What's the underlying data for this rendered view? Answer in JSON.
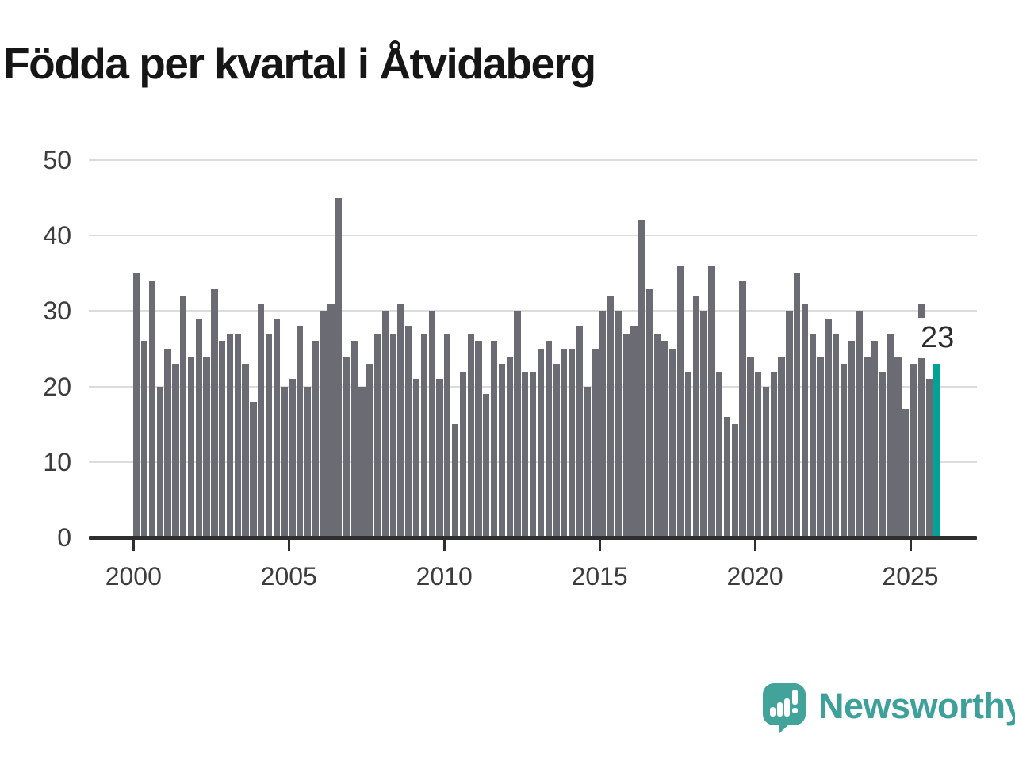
{
  "title": "Födda per kvartal i Åtvidaberg",
  "colors": {
    "bar": "#6b6b73",
    "highlight": "#00a295",
    "gridline": "#dcdcdc",
    "axis": "#2e2e2e",
    "logo_teal": "#3da09a"
  },
  "annotation": {
    "label": "23"
  },
  "logo": {
    "text": "Newsworthy"
  },
  "chart_data": {
    "type": "bar",
    "title": "Födda per kvartal i Åtvidaberg",
    "x_start": "2000 Q1",
    "x_step": "quarter",
    "values": [
      35,
      26,
      34,
      20,
      25,
      23,
      32,
      24,
      29,
      24,
      33,
      26,
      27,
      27,
      23,
      18,
      31,
      27,
      29,
      20,
      21,
      28,
      20,
      26,
      30,
      31,
      45,
      24,
      26,
      20,
      23,
      27,
      30,
      27,
      31,
      28,
      21,
      27,
      30,
      21,
      27,
      15,
      22,
      27,
      26,
      19,
      26,
      23,
      24,
      30,
      22,
      22,
      25,
      26,
      23,
      25,
      25,
      28,
      20,
      25,
      30,
      32,
      30,
      27,
      28,
      42,
      33,
      27,
      26,
      25,
      36,
      22,
      32,
      30,
      36,
      22,
      16,
      15,
      34,
      24,
      22,
      20,
      22,
      24,
      30,
      35,
      31,
      27,
      24,
      29,
      27,
      23,
      26,
      30,
      24,
      26,
      22,
      27,
      24,
      17,
      23,
      31,
      21,
      23
    ],
    "highlight_last": true,
    "last_value_label": "23",
    "y_ticks": [
      0,
      10,
      20,
      30,
      40,
      50
    ],
    "x_tick_years": [
      2000,
      2005,
      2010,
      2015,
      2020,
      2025
    ],
    "ylim": [
      0,
      50
    ],
    "grid": "horizontal"
  }
}
